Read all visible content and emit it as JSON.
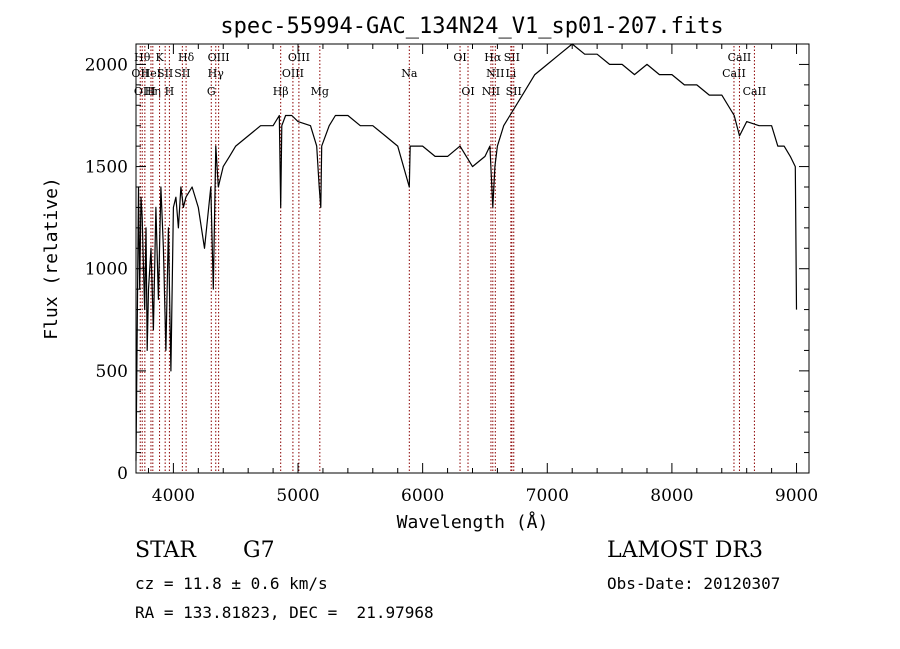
{
  "chart_data": {
    "type": "line",
    "title": "spec-55994-GAC_134N24_V1_sp01-207.fits",
    "xlabel": "Wavelength (Å)",
    "ylabel": "Flux (relative)",
    "xlim": [
      3700,
      9100
    ],
    "ylim": [
      0,
      2100
    ],
    "x_ticks": [
      4000,
      5000,
      6000,
      7000,
      8000,
      9000
    ],
    "x_tick_labels": [
      "4000",
      "5000",
      "6000",
      "7000",
      "8000",
      "9000"
    ],
    "y_ticks": [
      0,
      500,
      1000,
      1500,
      2000
    ],
    "y_tick_labels": [
      "0",
      "500",
      "1000",
      "1500",
      "2000"
    ],
    "grid": false,
    "line_color": "#000000",
    "marker_color": "#8b0000",
    "spectrum": {
      "x": [
        3700,
        3710,
        3720,
        3730,
        3740,
        3750,
        3760,
        3770,
        3780,
        3790,
        3800,
        3820,
        3840,
        3860,
        3880,
        3900,
        3920,
        3940,
        3960,
        3980,
        4000,
        4020,
        4040,
        4060,
        4080,
        4100,
        4150,
        4200,
        4250,
        4300,
        4320,
        4340,
        4360,
        4400,
        4450,
        4500,
        4600,
        4700,
        4800,
        4850,
        4861,
        4870,
        4900,
        4950,
        5000,
        5100,
        5150,
        5170,
        5183,
        5190,
        5250,
        5300,
        5400,
        5500,
        5600,
        5700,
        5800,
        5893,
        5900,
        6000,
        6100,
        6200,
        6300,
        6400,
        6500,
        6540,
        6563,
        6580,
        6600,
        6650,
        6700,
        6800,
        6900,
        7000,
        7100,
        7200,
        7300,
        7400,
        7500,
        7600,
        7700,
        7800,
        7900,
        8000,
        8100,
        8200,
        8300,
        8400,
        8500,
        8542,
        8600,
        8700,
        8800,
        8850,
        8900,
        8950,
        8990,
        9000
      ],
      "y": [
        60,
        700,
        1400,
        900,
        1350,
        1250,
        1000,
        800,
        1200,
        600,
        900,
        1100,
        700,
        1300,
        850,
        1400,
        1100,
        600,
        1200,
        500,
        1300,
        1350,
        1200,
        1400,
        1300,
        1350,
        1400,
        1300,
        1100,
        1400,
        900,
        1600,
        1400,
        1500,
        1550,
        1600,
        1650,
        1700,
        1700,
        1750,
        1300,
        1700,
        1750,
        1750,
        1720,
        1700,
        1600,
        1400,
        1300,
        1600,
        1700,
        1750,
        1750,
        1700,
        1700,
        1650,
        1600,
        1400,
        1600,
        1600,
        1550,
        1550,
        1600,
        1500,
        1550,
        1600,
        1300,
        1500,
        1600,
        1700,
        1750,
        1850,
        1950,
        2000,
        2050,
        2100,
        2050,
        2050,
        2000,
        2000,
        1950,
        2000,
        1950,
        1950,
        1900,
        1900,
        1850,
        1850,
        1750,
        1650,
        1720,
        1700,
        1700,
        1600,
        1600,
        1550,
        1500,
        800
      ]
    },
    "line_markers": [
      {
        "x": 3734,
        "label": "OII",
        "row": 2
      },
      {
        "x": 3750,
        "label": "Hθ",
        "row": 1
      },
      {
        "x": 3771,
        "label": "OIII",
        "row": 3
      },
      {
        "x": 3820,
        "label": "HeI",
        "row": 2
      },
      {
        "x": 3835,
        "label": "Hη",
        "row": 3
      },
      {
        "x": 3889,
        "label": "K",
        "row": 1
      },
      {
        "x": 3934,
        "label": "SII",
        "row": 2
      },
      {
        "x": 3968,
        "label": "H",
        "row": 3
      },
      {
        "x": 4072,
        "label": "SII",
        "row": 2
      },
      {
        "x": 4102,
        "label": "Hδ",
        "row": 1
      },
      {
        "x": 4304,
        "label": "G",
        "row": 3
      },
      {
        "x": 4340,
        "label": "Hγ",
        "row": 2
      },
      {
        "x": 4363,
        "label": "OIII",
        "row": 1
      },
      {
        "x": 4861,
        "label": "Hβ",
        "row": 3
      },
      {
        "x": 4959,
        "label": "OIII",
        "row": 2
      },
      {
        "x": 5007,
        "label": "OIII",
        "row": 1
      },
      {
        "x": 5175,
        "label": "Mg",
        "row": 3
      },
      {
        "x": 5893,
        "label": "Na",
        "row": 2
      },
      {
        "x": 6300,
        "label": "OI",
        "row": 1
      },
      {
        "x": 6364,
        "label": "OI",
        "row": 3
      },
      {
        "x": 6548,
        "label": "NII",
        "row": 3
      },
      {
        "x": 6563,
        "label": "Hα",
        "row": 1
      },
      {
        "x": 6583,
        "label": "NII",
        "row": 2
      },
      {
        "x": 6708,
        "label": "Li",
        "row": 2
      },
      {
        "x": 6716,
        "label": "SII",
        "row": 1
      },
      {
        "x": 6731,
        "label": "SII",
        "row": 3
      },
      {
        "x": 8498,
        "label": "CaII",
        "row": 2
      },
      {
        "x": 8542,
        "label": "CaII",
        "row": 1
      },
      {
        "x": 8662,
        "label": "CaII",
        "row": 3
      }
    ]
  },
  "info": {
    "object_class": "STAR",
    "subclass": "G7",
    "survey": "LAMOST DR3",
    "redshift_text": "cz = 11.8 ± 0.6 km/s",
    "obs_date_text": "Obs-Date: 20120307",
    "coords_text": "RA = 133.81823, DEC =  21.97968"
  }
}
